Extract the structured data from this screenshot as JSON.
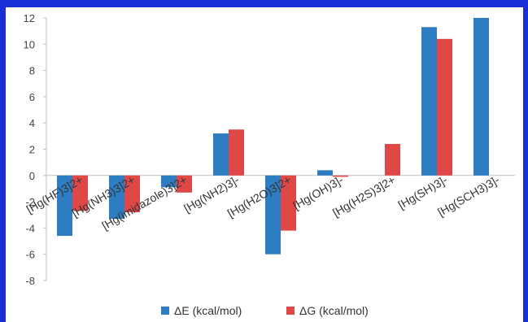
{
  "chart_data": {
    "type": "bar",
    "categories": [
      "[Hg(HF)3]2+",
      "[Hg(NH3)3]2+",
      "[Hg(imidazole)3]2+",
      "[Hg(NH2)3]-",
      "[Hg(H2O)3]2+",
      "[Hg(OH)3]-",
      "[Hg(H2S)3]2+",
      "[Hg(SH)3]-",
      "[Hg(SCH3)3]-"
    ],
    "series": [
      {
        "name": "ΔE (kcal/mol)",
        "color": "#2e7dc2",
        "values": [
          -4.6,
          -3.3,
          -0.9,
          3.2,
          -6.0,
          0.4,
          null,
          11.3,
          12.0
        ]
      },
      {
        "name": "ΔG (kcal/mol)",
        "color": "#e04848",
        "values": [
          -2.7,
          -2.8,
          -1.3,
          3.5,
          -4.2,
          -0.1,
          2.4,
          10.4,
          null
        ]
      }
    ],
    "ylim": [
      -8,
      12
    ],
    "yticks": [
      -8,
      -6,
      -4,
      -2,
      0,
      2,
      4,
      6,
      8,
      10,
      12
    ],
    "grid": false,
    "legend_position": "bottom"
  }
}
